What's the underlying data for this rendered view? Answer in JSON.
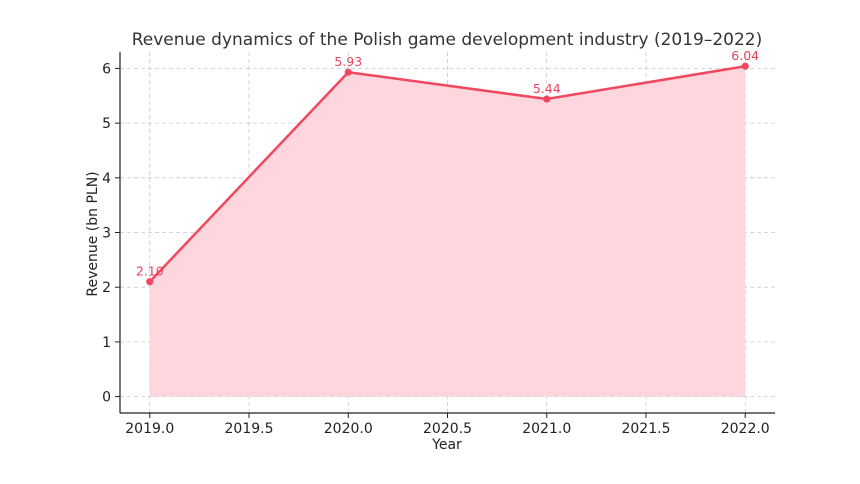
{
  "chart_data": {
    "type": "area",
    "title": "Revenue dynamics of the Polish game development industry (2019–2022)",
    "xlabel": "Year",
    "ylabel": "Revenue (bn PLN)",
    "x": [
      2019,
      2020,
      2021,
      2022
    ],
    "values": [
      2.1,
      5.93,
      5.44,
      6.04
    ],
    "data_labels": [
      "2.10",
      "5.93",
      "5.44",
      "6.04"
    ],
    "xlim": [
      2018.85,
      2022.15
    ],
    "ylim": [
      -0.3,
      6.3
    ],
    "x_ticks": [
      2019.0,
      2019.5,
      2020.0,
      2020.5,
      2021.0,
      2021.5,
      2022.0
    ],
    "x_tick_labels": [
      "2019.0",
      "2019.5",
      "2020.0",
      "2020.5",
      "2021.0",
      "2021.5",
      "2022.0"
    ],
    "y_ticks": [
      0,
      1,
      2,
      3,
      4,
      5,
      6
    ],
    "y_tick_labels": [
      "0",
      "1",
      "2",
      "3",
      "4",
      "5",
      "6"
    ],
    "grid": true,
    "colors": {
      "line": "#f0485e",
      "fill": "#ffd6dd",
      "label": "#e8445a"
    }
  }
}
